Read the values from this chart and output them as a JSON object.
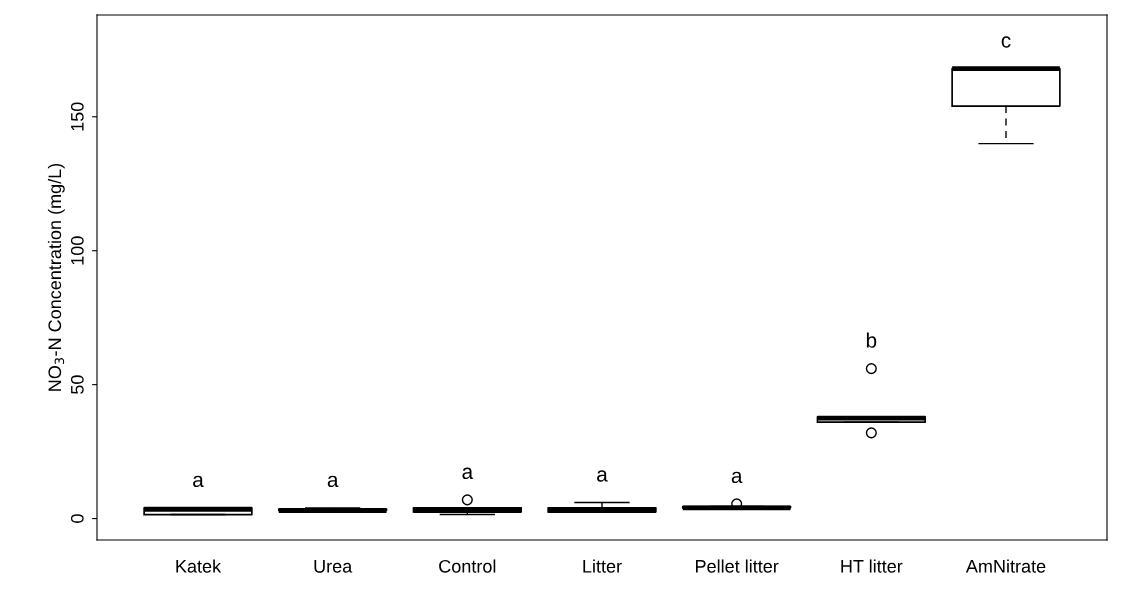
{
  "chart_data": {
    "type": "box",
    "ylabel": "NO$_{3}$-N Concentration (mg/L)",
    "categories": [
      "Katek",
      "Urea",
      "Control",
      "Litter",
      "Pellet litter",
      "HT litter",
      "AmNitrate"
    ],
    "boxes": [
      {
        "low": 1.5,
        "q1": 1.5,
        "median": 3.5,
        "q3": 4,
        "high": 4
      },
      {
        "low": 3,
        "q1": 3,
        "median": 3,
        "q3": 3.5,
        "high": 4
      },
      {
        "low": 1.5,
        "q1": 2.5,
        "median": 3,
        "q3": 4,
        "high": 4,
        "outliers": [
          7
        ]
      },
      {
        "low": 2.5,
        "q1": 2.5,
        "median": 3,
        "q3": 4,
        "high": 6
      },
      {
        "low": 4,
        "q1": 4,
        "median": 4,
        "q3": 4.5,
        "high": 4.5,
        "outliers": [
          5.5
        ]
      },
      {
        "low": 36,
        "q1": 36,
        "median": 37.5,
        "q3": 38,
        "high": 38,
        "outliers": [
          56,
          32
        ]
      },
      {
        "low": 140,
        "q1": 154,
        "median": 168,
        "q3": 168,
        "high": 168
      }
    ],
    "annotations": [
      "a",
      "a",
      "a",
      "a",
      "a",
      "b",
      "c"
    ],
    "ylim": [
      -8,
      188
    ],
    "yticks": [
      0,
      50,
      100,
      150
    ],
    "grid": false
  }
}
